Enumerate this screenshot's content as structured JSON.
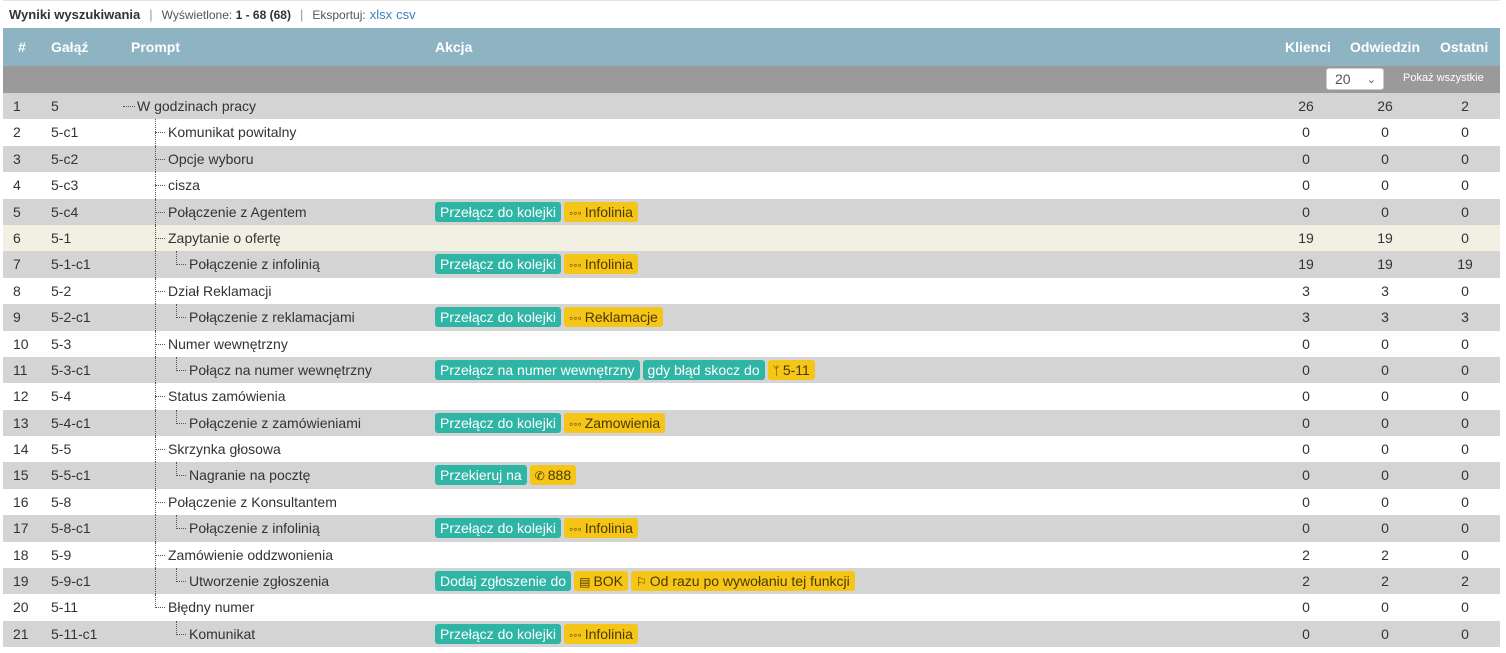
{
  "header": {
    "title": "Wyniki wyszukiwania",
    "shown_label": "Wyświetlone:",
    "shown_value": "1 - 68 (68)",
    "export_label": "Eksportuj:",
    "export_xlsx": "xlsx",
    "export_csv": "csv"
  },
  "columns": {
    "num": "#",
    "branch": "Gałąź",
    "prompt": "Prompt",
    "action": "Akcja",
    "klienci": "Klienci",
    "odwiedzin": "Odwiedzin",
    "ostatni": "Ostatni"
  },
  "filter": {
    "page_size": "20",
    "show_all": "Pokaż wszystkie"
  },
  "icons": {
    "queue": "ellipsis-icon",
    "branch": "code-branch-icon",
    "phone": "phone-icon",
    "clipboard": "clipboard-icon",
    "flag": "flag-icon"
  },
  "colors": {
    "header_bg": "#8eb3c3",
    "filter_bg": "#9a9a9a",
    "odd_row": "#d4d4d4",
    "highlight_row": "#f2efe3",
    "action_tag": "#2fb5a5",
    "param_tag": "#f5c518"
  },
  "rows": [
    {
      "num": "1",
      "branch": "5",
      "prompt": "W godzinach pracy",
      "depth": 0,
      "actions": [],
      "klienci": "26",
      "odwiedzin": "26",
      "ostatni": "2"
    },
    {
      "num": "2",
      "branch": "5-c1",
      "prompt": "Komunikat powitalny",
      "depth": 1,
      "actions": [],
      "klienci": "0",
      "odwiedzin": "0",
      "ostatni": "0"
    },
    {
      "num": "3",
      "branch": "5-c2",
      "prompt": "Opcje wyboru",
      "depth": 1,
      "actions": [],
      "klienci": "0",
      "odwiedzin": "0",
      "ostatni": "0"
    },
    {
      "num": "4",
      "branch": "5-c3",
      "prompt": "cisza",
      "depth": 1,
      "actions": [],
      "klienci": "0",
      "odwiedzin": "0",
      "ostatni": "0"
    },
    {
      "num": "5",
      "branch": "5-c4",
      "prompt": "Połączenie z Agentem",
      "depth": 1,
      "actions": [
        {
          "type": "teal",
          "text": "Przełącz do kolejki"
        },
        {
          "type": "yel",
          "icon": "ellipsis-icon",
          "text": "Infolinia"
        }
      ],
      "klienci": "0",
      "odwiedzin": "0",
      "ostatni": "0"
    },
    {
      "num": "6",
      "branch": "5-1",
      "prompt": "Zapytanie o ofertę",
      "depth": 1,
      "actions": [],
      "klienci": "19",
      "odwiedzin": "19",
      "ostatni": "0"
    },
    {
      "num": "7",
      "branch": "5-1-c1",
      "prompt": "Połączenie z infolinią",
      "depth": 2,
      "actions": [
        {
          "type": "teal",
          "text": "Przełącz do kolejki"
        },
        {
          "type": "yel",
          "icon": "ellipsis-icon",
          "text": "Infolinia"
        }
      ],
      "klienci": "19",
      "odwiedzin": "19",
      "ostatni": "19"
    },
    {
      "num": "8",
      "branch": "5-2",
      "prompt": "Dział Reklamacji",
      "depth": 1,
      "actions": [],
      "klienci": "3",
      "odwiedzin": "3",
      "ostatni": "0"
    },
    {
      "num": "9",
      "branch": "5-2-c1",
      "prompt": "Połączenie z reklamacjami",
      "depth": 2,
      "actions": [
        {
          "type": "teal",
          "text": "Przełącz do kolejki"
        },
        {
          "type": "yel",
          "icon": "ellipsis-icon",
          "text": "Reklamacje"
        }
      ],
      "klienci": "3",
      "odwiedzin": "3",
      "ostatni": "3"
    },
    {
      "num": "10",
      "branch": "5-3",
      "prompt": "Numer wewnętrzny",
      "depth": 1,
      "actions": [],
      "klienci": "0",
      "odwiedzin": "0",
      "ostatni": "0"
    },
    {
      "num": "11",
      "branch": "5-3-c1",
      "prompt": "Połącz na numer wewnętrzny",
      "depth": 2,
      "actions": [
        {
          "type": "teal",
          "text": "Przełącz na numer wewnętrzny"
        },
        {
          "type": "teal",
          "text": "gdy błąd skocz do"
        },
        {
          "type": "yel",
          "icon": "code-branch-icon",
          "text": "5-11"
        }
      ],
      "klienci": "0",
      "odwiedzin": "0",
      "ostatni": "0"
    },
    {
      "num": "12",
      "branch": "5-4",
      "prompt": "Status zamówienia",
      "depth": 1,
      "actions": [],
      "klienci": "0",
      "odwiedzin": "0",
      "ostatni": "0"
    },
    {
      "num": "13",
      "branch": "5-4-c1",
      "prompt": "Połączenie z zamówieniami",
      "depth": 2,
      "actions": [
        {
          "type": "teal",
          "text": "Przełącz do kolejki"
        },
        {
          "type": "yel",
          "icon": "ellipsis-icon",
          "text": "Zamowienia"
        }
      ],
      "klienci": "0",
      "odwiedzin": "0",
      "ostatni": "0"
    },
    {
      "num": "14",
      "branch": "5-5",
      "prompt": "Skrzynka głosowa",
      "depth": 1,
      "actions": [],
      "klienci": "0",
      "odwiedzin": "0",
      "ostatni": "0"
    },
    {
      "num": "15",
      "branch": "5-5-c1",
      "prompt": "Nagranie na pocztę",
      "depth": 2,
      "actions": [
        {
          "type": "teal",
          "text": "Przekieruj na"
        },
        {
          "type": "yel",
          "icon": "phone-icon",
          "text": "888"
        }
      ],
      "klienci": "0",
      "odwiedzin": "0",
      "ostatni": "0"
    },
    {
      "num": "16",
      "branch": "5-8",
      "prompt": "Połączenie z Konsultantem",
      "depth": 1,
      "actions": [],
      "klienci": "0",
      "odwiedzin": "0",
      "ostatni": "0"
    },
    {
      "num": "17",
      "branch": "5-8-c1",
      "prompt": "Połączenie z infolinią",
      "depth": 2,
      "actions": [
        {
          "type": "teal",
          "text": "Przełącz do kolejki"
        },
        {
          "type": "yel",
          "icon": "ellipsis-icon",
          "text": "Infolinia"
        }
      ],
      "klienci": "0",
      "odwiedzin": "0",
      "ostatni": "0"
    },
    {
      "num": "18",
      "branch": "5-9",
      "prompt": "Zamówienie oddzwonienia",
      "depth": 1,
      "actions": [],
      "klienci": "2",
      "odwiedzin": "2",
      "ostatni": "0"
    },
    {
      "num": "19",
      "branch": "5-9-c1",
      "prompt": "Utworzenie zgłoszenia",
      "depth": 2,
      "actions": [
        {
          "type": "teal",
          "text": "Dodaj zgłoszenie do"
        },
        {
          "type": "yel",
          "icon": "clipboard-icon",
          "text": "BOK"
        },
        {
          "type": "yel",
          "icon": "flag-icon",
          "text": "Od razu po wywołaniu tej funkcji"
        }
      ],
      "klienci": "2",
      "odwiedzin": "2",
      "ostatni": "2"
    },
    {
      "num": "20",
      "branch": "5-11",
      "prompt": "Błędny numer",
      "depth": 1,
      "actions": [],
      "klienci": "0",
      "odwiedzin": "0",
      "ostatni": "0"
    },
    {
      "num": "21",
      "branch": "5-11-c1",
      "prompt": "Komunikat",
      "depth": 2,
      "actions": [
        {
          "type": "teal",
          "text": "Przełącz do kolejki"
        },
        {
          "type": "yel",
          "icon": "ellipsis-icon",
          "text": "Infolinia"
        }
      ],
      "klienci": "0",
      "odwiedzin": "0",
      "ostatni": "0"
    }
  ]
}
